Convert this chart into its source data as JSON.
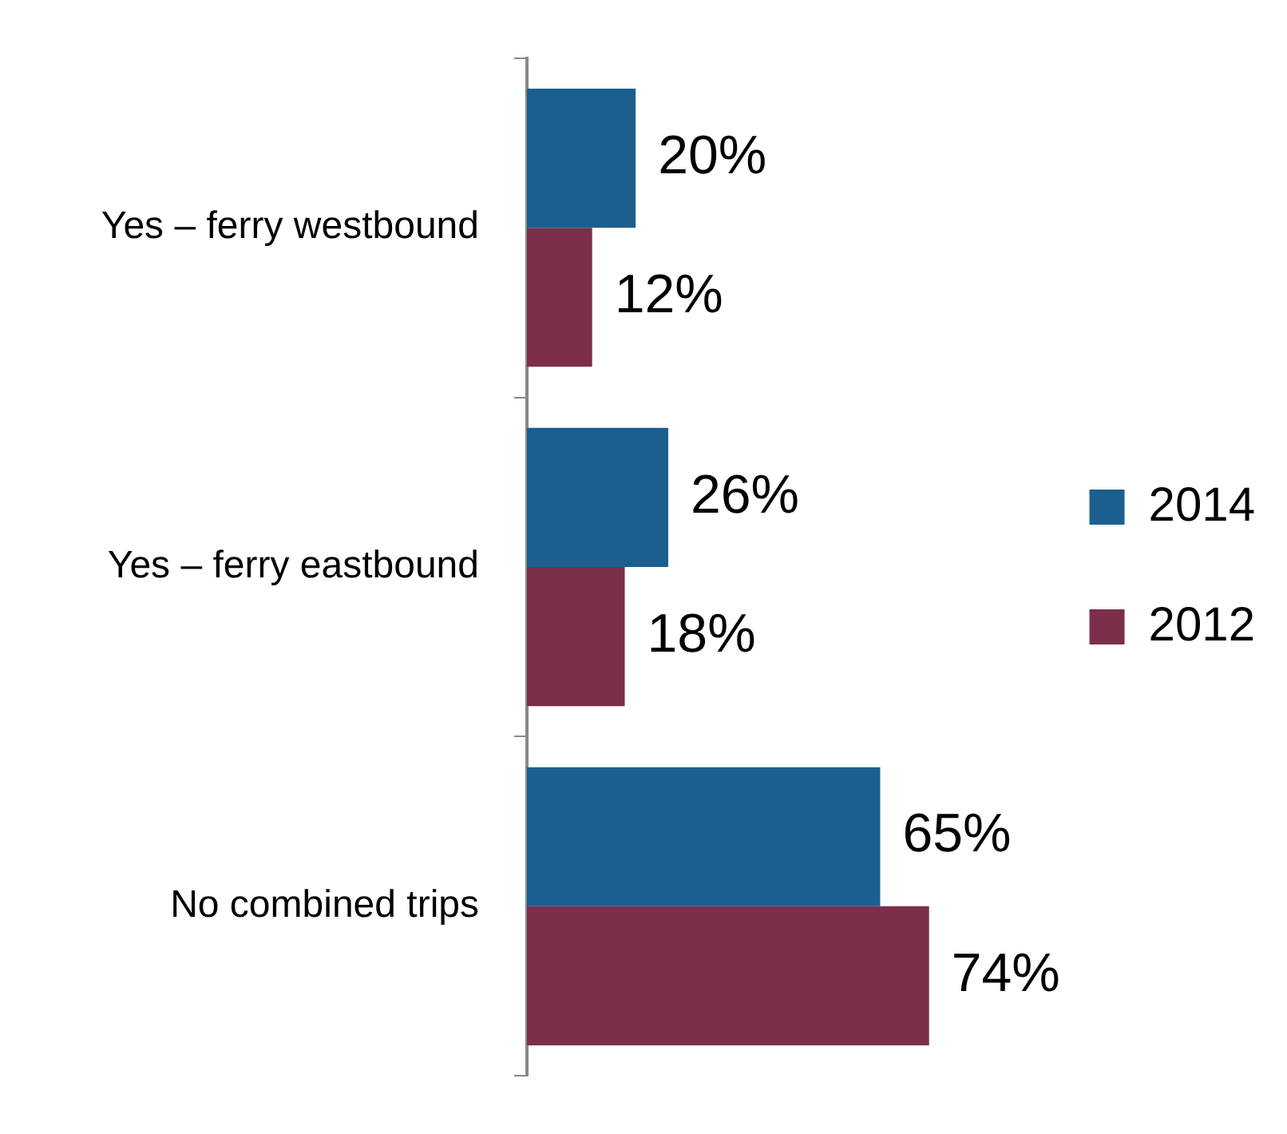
{
  "chart_data": {
    "type": "bar",
    "orientation": "horizontal",
    "categories": [
      "Yes – ferry westbound",
      "Yes – ferry eastbound",
      "No combined trips"
    ],
    "series": [
      {
        "name": "2014",
        "color": "#1a5f8f",
        "values": [
          20,
          26,
          65
        ],
        "value_labels": [
          "20%",
          "26%",
          "65%"
        ]
      },
      {
        "name": "2012",
        "color": "#7d2e4a",
        "values": [
          12,
          18,
          74
        ],
        "value_labels": [
          "12%",
          "18%",
          "74%"
        ]
      }
    ],
    "legend": "right",
    "grid": false
  }
}
